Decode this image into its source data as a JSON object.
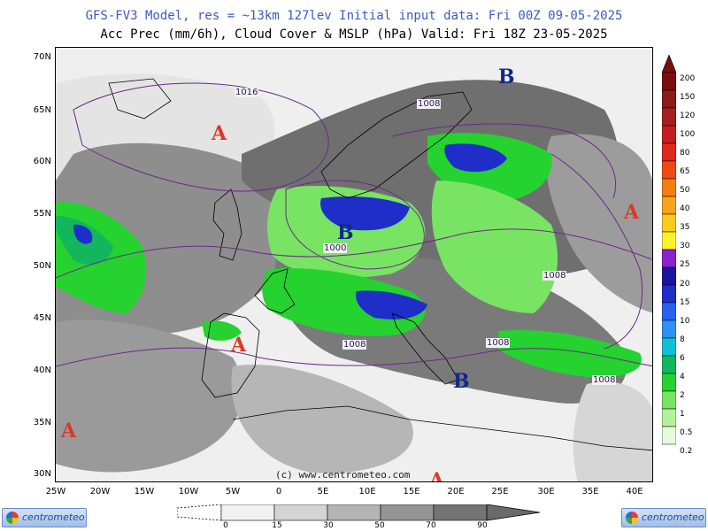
{
  "header": {
    "line1": "GFS-FV3 Model, res = ~13km 127lev   Initial input data: Fri 00Z 09-05-2025",
    "line2": "Acc Prec (mm/6h), Cloud Cover & MSLP (hPa)  Valid: Fri 18Z 23-05-2025"
  },
  "map": {
    "lat_labels": [
      "70N",
      "65N",
      "60N",
      "55N",
      "50N",
      "45N",
      "40N",
      "35N",
      "30N"
    ],
    "lon_labels": [
      "25W",
      "20W",
      "15W",
      "10W",
      "5W",
      "0",
      "5E",
      "10E",
      "15E",
      "20E",
      "25E",
      "30E",
      "35E",
      "40E"
    ],
    "pressure_centers": [
      {
        "type": "high",
        "label": "A"
      },
      {
        "type": "high",
        "label": "A"
      },
      {
        "type": "high",
        "label": "A"
      },
      {
        "type": "high",
        "label": "A"
      },
      {
        "type": "high",
        "label": "A"
      },
      {
        "type": "low",
        "label": "B"
      },
      {
        "type": "low",
        "label": "B"
      },
      {
        "type": "low",
        "label": "B"
      }
    ],
    "isobar_labels": [
      "1016",
      "1008",
      "1000",
      "1008",
      "1008",
      "1008",
      "1008"
    ],
    "credit": "(c) www.centrometeo.com"
  },
  "precip_legend": {
    "labels": [
      "200",
      "150",
      "120",
      "100",
      "80",
      "65",
      "50",
      "40",
      "35",
      "30",
      "25",
      "20",
      "15",
      "10",
      "8",
      "6",
      "4",
      "2",
      "1",
      "0.5",
      "0.2"
    ],
    "colors": [
      "#7a0d0d",
      "#8b1a1a",
      "#a51f1f",
      "#c41e1e",
      "#e02a1a",
      "#f04a14",
      "#f57d12",
      "#f9a21b",
      "#fcc91e",
      "#fff12e",
      "#8c1fd0",
      "#1a15a0",
      "#1f2ec9",
      "#2a62ee",
      "#2f90f5",
      "#12c0d4",
      "#13b65c",
      "#25d22f",
      "#79e364",
      "#b5f19a",
      "#e6fadc"
    ]
  },
  "cloud_legend": {
    "labels": [
      "0",
      "15",
      "30",
      "50",
      "70",
      "90"
    ],
    "colors": [
      "#f2f2f2",
      "#d4d4d4",
      "#b4b4b4",
      "#949494",
      "#747474"
    ]
  },
  "logos": {
    "left_text": "centrometeo",
    "right_text": "centrometeo"
  }
}
